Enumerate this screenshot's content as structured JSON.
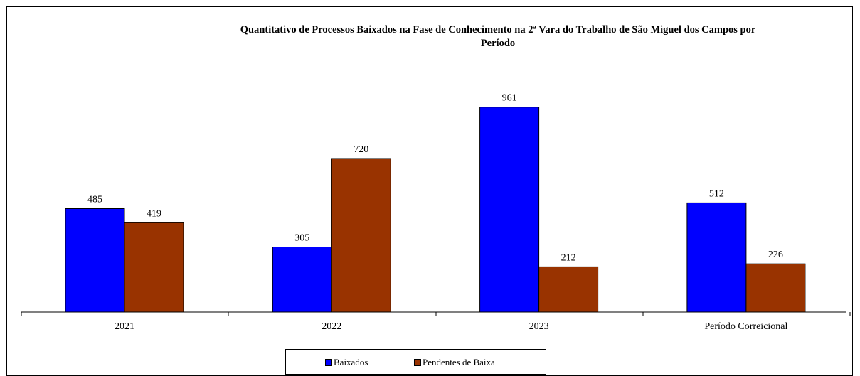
{
  "chart_data": {
    "type": "bar",
    "title_line1": "Quantitativo de Processos Baixados na Fase de Conhecimento na 2ª Vara do Trabalho de São Miguel dos Campos por",
    "title_line2": "Período",
    "categories": [
      "2021",
      "2022",
      "2023",
      "Período Correicional"
    ],
    "series": [
      {
        "name": "Baixados",
        "color": "#0000ff",
        "values": [
          485,
          305,
          961,
          512
        ]
      },
      {
        "name": "Pendentes de Baixa",
        "color": "#993300",
        "values": [
          419,
          720,
          212,
          226
        ]
      }
    ],
    "xlabel": "",
    "ylabel": "",
    "ylim": [
      0,
      1100
    ],
    "grid": false,
    "legend_position": "bottom"
  }
}
